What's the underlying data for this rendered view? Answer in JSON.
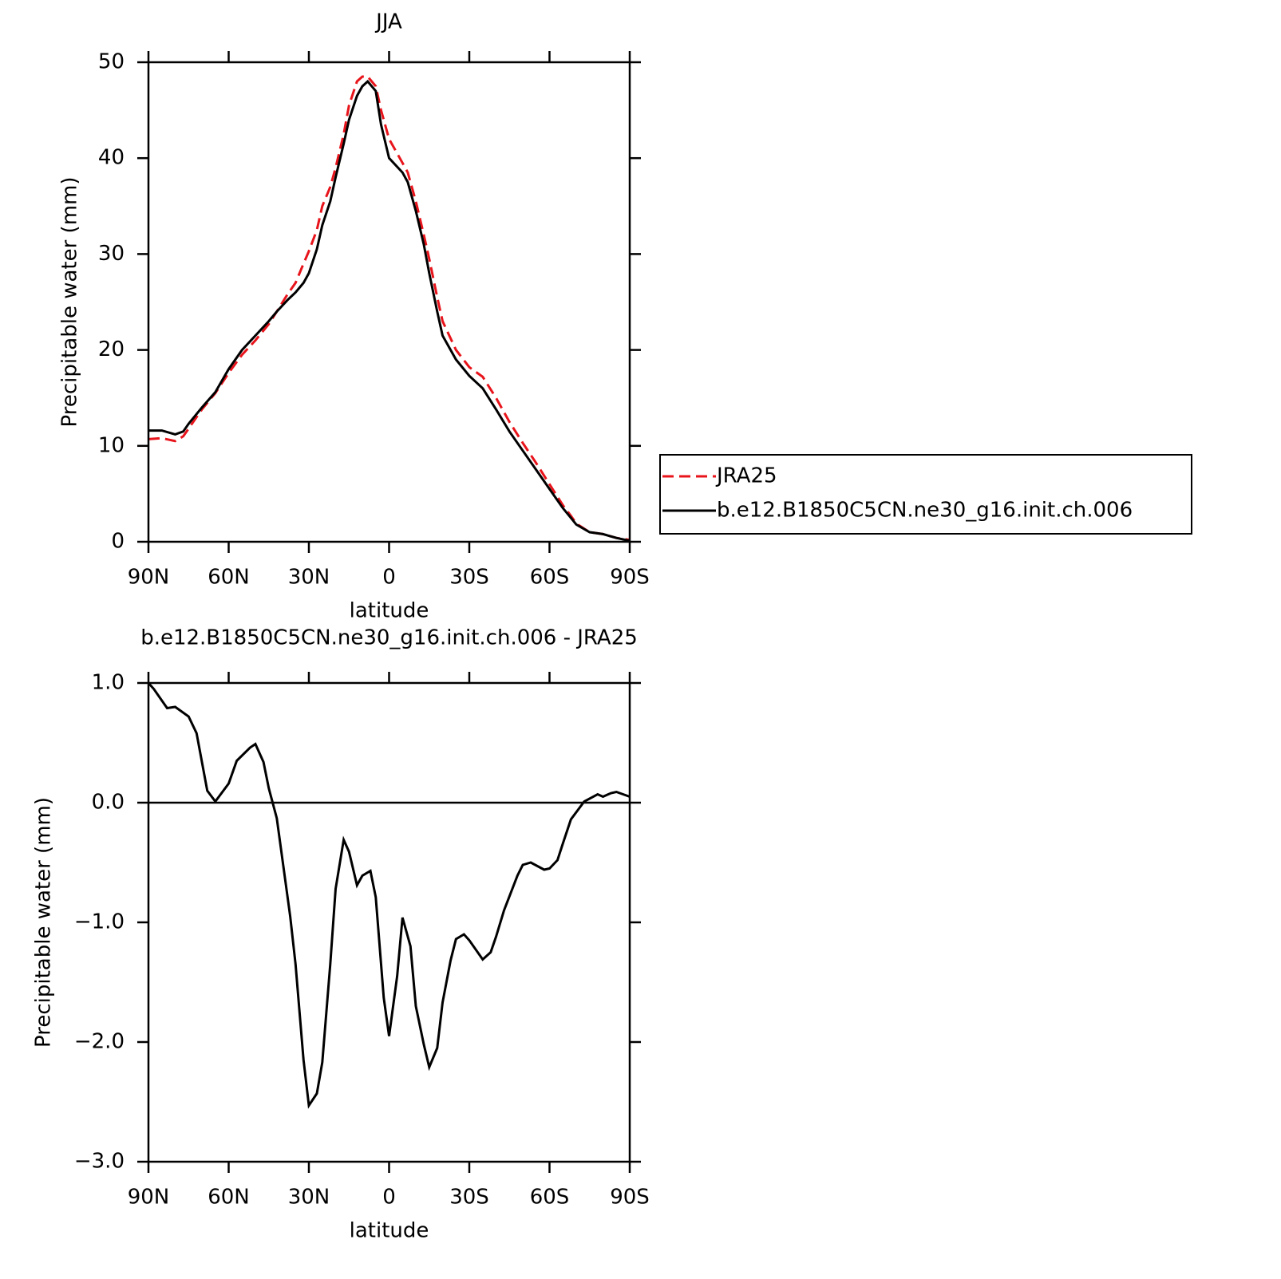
{
  "chart_data": [
    {
      "type": "line",
      "title": "JJA",
      "x_label": "latitude",
      "y_label": "Precipitable water (mm)",
      "xlim": [
        90,
        -90
      ],
      "xticks": [
        {
          "value": 90,
          "label": "90N"
        },
        {
          "value": 60,
          "label": "60N"
        },
        {
          "value": 30,
          "label": "30N"
        },
        0,
        {
          "value": -30,
          "label": "30S"
        },
        {
          "value": -60,
          "label": "60S"
        },
        {
          "value": -90,
          "label": "90S"
        }
      ],
      "ylim": [
        0,
        50
      ],
      "yticks": [
        0,
        10,
        20,
        30,
        40,
        50
      ],
      "legend": "right",
      "x": [
        90,
        85,
        80,
        77,
        75,
        70,
        65,
        60,
        55,
        50,
        45,
        42,
        38,
        35,
        32,
        30,
        27,
        25,
        22,
        20,
        17,
        15,
        12,
        10,
        8,
        5,
        3,
        0,
        -5,
        -7,
        -10,
        -13,
        -15,
        -18,
        -20,
        -25,
        -30,
        -35,
        -40,
        -45,
        -50,
        -55,
        -60,
        -65,
        -68,
        -70,
        -75,
        -80,
        -85,
        -90
      ],
      "series": [
        {
          "name": "JRA25",
          "color": "#e8141b",
          "line_style": "dashed",
          "values": [
            10.7,
            10.8,
            10.5,
            11.0,
            11.8,
            13.8,
            15.5,
            17.6,
            19.5,
            21.0,
            22.7,
            24.0,
            25.8,
            27.0,
            29.0,
            30.3,
            32.5,
            35.0,
            37.0,
            39.0,
            42.5,
            45.5,
            48.0,
            48.5,
            48.5,
            47.5,
            45.0,
            42.0,
            39.5,
            38.5,
            35.5,
            32.0,
            29.5,
            25.5,
            23.0,
            20.0,
            18.2,
            17.2,
            15.0,
            12.5,
            10.3,
            8.2,
            6.0,
            3.8,
            2.7,
            1.9,
            1.0,
            0.8,
            0.4,
            0.2
          ]
        },
        {
          "name": "b.e12.B1850C5CN.ne30_g16.init.ch.006",
          "color": "#000000",
          "line_style": "solid",
          "values": [
            11.6,
            11.6,
            11.2,
            11.5,
            12.3,
            14.0,
            15.6,
            18.0,
            20.0,
            21.5,
            23.0,
            24.0,
            25.2,
            26.0,
            27.0,
            28.0,
            30.5,
            33.0,
            35.5,
            38.0,
            41.5,
            44.0,
            46.5,
            47.5,
            48.0,
            47.0,
            43.5,
            40.0,
            38.5,
            37.5,
            34.5,
            31.0,
            28.0,
            24.0,
            21.5,
            19.0,
            17.3,
            16.0,
            13.8,
            11.5,
            9.5,
            7.5,
            5.5,
            3.5,
            2.5,
            1.8,
            1.0,
            0.8,
            0.4,
            0.1
          ]
        }
      ]
    },
    {
      "type": "line",
      "title": "b.e12.B1850C5CN.ne30_g16.init.ch.006 - JRA25",
      "x_label": "latitude",
      "y_label": "Precipitable water (mm)",
      "xlim": [
        90,
        -90
      ],
      "xticks": [
        {
          "value": 90,
          "label": "90N"
        },
        {
          "value": 60,
          "label": "60N"
        },
        {
          "value": 30,
          "label": "30N"
        },
        0,
        {
          "value": -30,
          "label": "30S"
        },
        {
          "value": -60,
          "label": "60S"
        },
        {
          "value": -90,
          "label": "90S"
        }
      ],
      "ylim": [
        -3,
        1
      ],
      "yticks": [
        {
          "value": -3,
          "label": "−3.0"
        },
        {
          "value": -2,
          "label": "−2.0"
        },
        {
          "value": -1,
          "label": "−1.0"
        },
        {
          "value": 0,
          "label": "0.0"
        },
        {
          "value": 1,
          "label": "1.0"
        }
      ],
      "x": [
        90,
        88,
        83,
        80,
        75,
        72,
        68,
        65,
        60,
        57,
        52,
        50,
        47,
        45,
        42,
        37,
        35,
        32,
        30,
        27,
        25,
        22,
        20,
        17,
        15,
        12,
        10,
        7,
        5,
        2,
        0,
        -3,
        -5,
        -8,
        -10,
        -13,
        -15,
        -18,
        -20,
        -23,
        -25,
        -28,
        -30,
        -35,
        -38,
        -40,
        -43,
        -48,
        -50,
        -53,
        -58,
        -60,
        -63,
        -65,
        -68,
        -73,
        -78,
        -80,
        -83,
        -85,
        -90
      ],
      "series": [
        {
          "color": "#000000",
          "line_style": "solid",
          "values": [
            1.0,
            0.95,
            0.79,
            0.8,
            0.72,
            0.58,
            0.1,
            0.01,
            0.16,
            0.35,
            0.46,
            0.49,
            0.34,
            0.12,
            -0.13,
            -0.95,
            -1.35,
            -2.15,
            -2.53,
            -2.43,
            -2.17,
            -1.35,
            -0.72,
            -0.31,
            -0.41,
            -0.69,
            -0.61,
            -0.57,
            -0.79,
            -1.63,
            -1.95,
            -1.45,
            -0.96,
            -1.2,
            -1.7,
            -2.02,
            -2.21,
            -2.05,
            -1.67,
            -1.32,
            -1.14,
            -1.1,
            -1.15,
            -1.31,
            -1.25,
            -1.12,
            -0.9,
            -0.61,
            -0.52,
            -0.5,
            -0.56,
            -0.55,
            -0.48,
            -0.34,
            -0.14,
            0.01,
            0.07,
            0.05,
            0.08,
            0.09,
            0.05
          ]
        }
      ]
    }
  ]
}
